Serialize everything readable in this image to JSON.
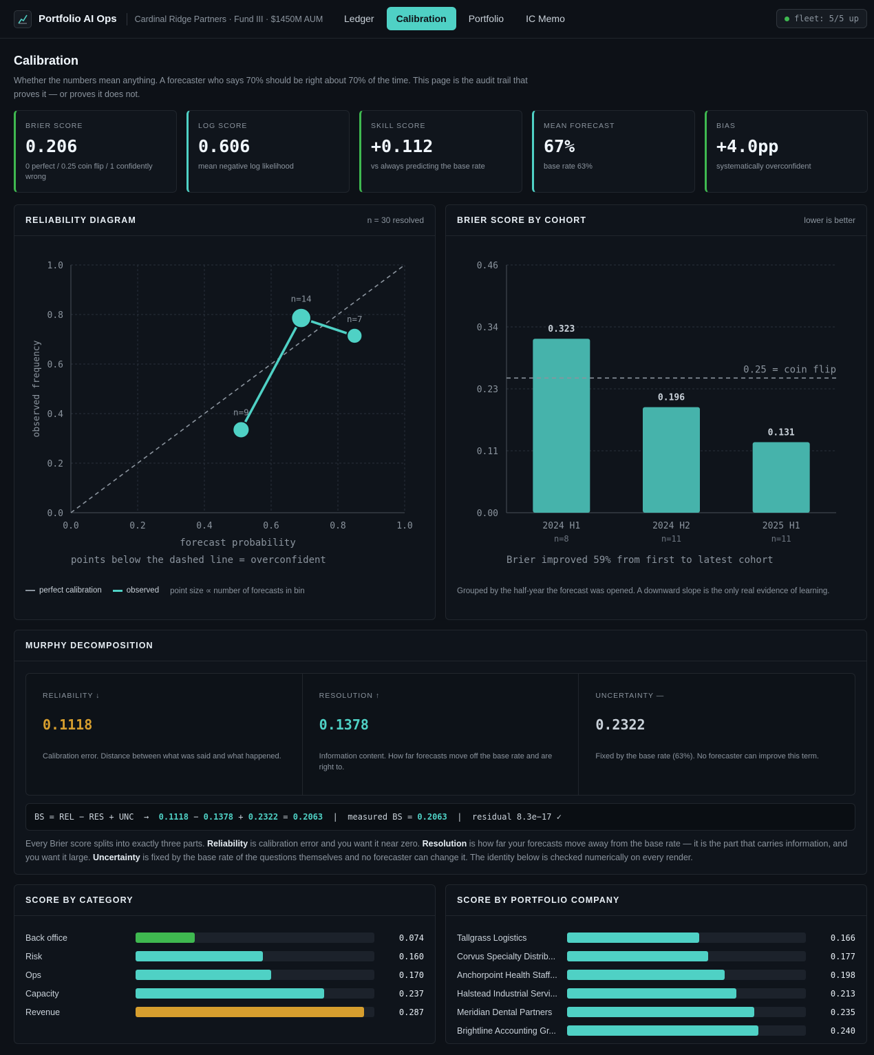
{
  "app": {
    "title": "Portfolio AI Ops",
    "fund": "Cardinal Ridge Partners · Fund III · $1450M AUM",
    "tabs": [
      {
        "label": "Ledger",
        "active": false
      },
      {
        "label": "Calibration",
        "active": true
      },
      {
        "label": "Portfolio",
        "active": false
      },
      {
        "label": "IC Memo",
        "active": false
      }
    ],
    "fleet_status": "fleet: 5/5 up"
  },
  "page": {
    "title": "Calibration",
    "description": "Whether the numbers mean anything. A forecaster who says 70% should be right about 70% of the time. This page is the audit trail that proves it — or proves it does not."
  },
  "stats": [
    {
      "label": "BRIER SCORE",
      "value": "0.206",
      "sub": "0 perfect / 0.25 coin flip / 1 confidently wrong",
      "accent": "green"
    },
    {
      "label": "LOG SCORE",
      "value": "0.606",
      "sub": "mean negative log likelihood",
      "accent": "teal"
    },
    {
      "label": "SKILL SCORE",
      "value": "+0.112",
      "sub": "vs always predicting the base rate",
      "accent": "green"
    },
    {
      "label": "MEAN FORECAST",
      "value": "67%",
      "sub": "base rate 63%",
      "accent": "teal"
    },
    {
      "label": "BIAS",
      "value": "+4.0pp",
      "sub": "systematically overconfident",
      "accent": "green"
    }
  ],
  "reliability": {
    "title": "RELIABILITY DIAGRAM",
    "meta": "n = 30 resolved",
    "legend_perfect": "perfect calibration",
    "legend_observed": "observed",
    "legend_note": "point size ∝ number of forecasts in bin"
  },
  "cohort": {
    "title": "BRIER SCORE BY COHORT",
    "meta": "lower is better",
    "note": "Grouped by the half-year the forecast was opened. A downward slope is the only real evidence of learning."
  },
  "chart_data": [
    {
      "type": "scatter",
      "ylabel": "observed frequency",
      "xlabel": "forecast probability",
      "annotation": "points below the dashed line = overconfident",
      "xlim": [
        0,
        1
      ],
      "ylim": [
        0,
        1
      ],
      "x_ticks": [
        "0.0",
        "0.2",
        "0.4",
        "0.6",
        "0.8",
        "1.0"
      ],
      "y_ticks": [
        "0.0",
        "0.2",
        "0.4",
        "0.6",
        "0.8",
        "1.0"
      ],
      "grid": true,
      "reference_line": "y = x",
      "points": [
        {
          "x": 0.51,
          "y": 0.335,
          "label": "n=9",
          "n": 9
        },
        {
          "x": 0.69,
          "y": 0.786,
          "label": "n=14",
          "n": 14
        },
        {
          "x": 0.85,
          "y": 0.714,
          "label": "n=7",
          "n": 7
        }
      ]
    },
    {
      "type": "bar",
      "categories": [
        "2024 H1",
        "2024 H2",
        "2025 H1"
      ],
      "category_counts": [
        "n=8",
        "n=11",
        "n=11"
      ],
      "values": [
        0.323,
        0.196,
        0.131
      ],
      "value_labels": [
        "0.323",
        "0.196",
        "0.131"
      ],
      "ylim": [
        0,
        0.46
      ],
      "y_ticks": [
        "0.00",
        "0.11",
        "0.23",
        "0.34",
        "0.46"
      ],
      "reference": {
        "value": 0.25,
        "label": "0.25 = coin flip"
      },
      "annotation": "Brier improved 59% from first to latest cohort",
      "grid": true
    }
  ],
  "murphy": {
    "title": "MURPHY DECOMPOSITION",
    "cells": [
      {
        "label": "RELIABILITY ↓",
        "value": "0.1118",
        "color": "#d69e2e",
        "desc": "Calibration error. Distance between what was said and what happened."
      },
      {
        "label": "RESOLUTION ↑",
        "value": "0.1378",
        "color": "#4fd1c5",
        "desc": "Information content. How far forecasts move off the base rate and are right to."
      },
      {
        "label": "UNCERTAINTY —",
        "value": "0.2322",
        "color": "#c9d1d9",
        "desc": "Fixed by the base rate (63%). No forecaster can improve this term."
      }
    ],
    "formula": {
      "lhs": "BS = REL − RES + UNC  →  ",
      "rel": "0.1118",
      "minus": " − ",
      "res": "0.1378",
      "plus": " + ",
      "unc": "0.2322",
      "eq": " = ",
      "bs": "0.2063",
      "measured_label": "  |  measured BS = ",
      "measured": "0.2063",
      "residual": "  |  residual 8.3e−17 ✓"
    },
    "text": {
      "p1": "Every Brier score splits into exactly three parts. ",
      "b1": "Reliability",
      "p2": " is calibration error and you want it near zero. ",
      "b2": "Resolution",
      "p3": " is how far your forecasts move away from the base rate — it is the part that carries information, and you want it large. ",
      "b3": "Uncertainty",
      "p4": " is fixed by the base rate of the questions themselves and no forecaster can change it. The identity below is checked numerically on every render."
    }
  },
  "by_category": {
    "title": "SCORE BY CATEGORY",
    "max": 0.3,
    "rows": [
      {
        "label": "Back office",
        "value": 0.074,
        "display": "0.074",
        "color": "#3fb950"
      },
      {
        "label": "Risk",
        "value": 0.16,
        "display": "0.160",
        "color": "#4fd1c5"
      },
      {
        "label": "Ops",
        "value": 0.17,
        "display": "0.170",
        "color": "#4fd1c5"
      },
      {
        "label": "Capacity",
        "value": 0.237,
        "display": "0.237",
        "color": "#4fd1c5"
      },
      {
        "label": "Revenue",
        "value": 0.287,
        "display": "0.287",
        "color": "#d69e2e"
      }
    ]
  },
  "by_company": {
    "title": "SCORE BY PORTFOLIO COMPANY",
    "max": 0.3,
    "rows": [
      {
        "label": "Tallgrass Logistics",
        "value": 0.166,
        "display": "0.166",
        "color": "#4fd1c5"
      },
      {
        "label": "Corvus Specialty Distrib...",
        "value": 0.177,
        "display": "0.177",
        "color": "#4fd1c5"
      },
      {
        "label": "Anchorpoint Health Staff...",
        "value": 0.198,
        "display": "0.198",
        "color": "#4fd1c5"
      },
      {
        "label": "Halstead Industrial Servi...",
        "value": 0.213,
        "display": "0.213",
        "color": "#4fd1c5"
      },
      {
        "label": "Meridian Dental Partners",
        "value": 0.235,
        "display": "0.235",
        "color": "#4fd1c5"
      },
      {
        "label": "Brightline Accounting Gr...",
        "value": 0.24,
        "display": "0.240",
        "color": "#4fd1c5"
      }
    ]
  }
}
